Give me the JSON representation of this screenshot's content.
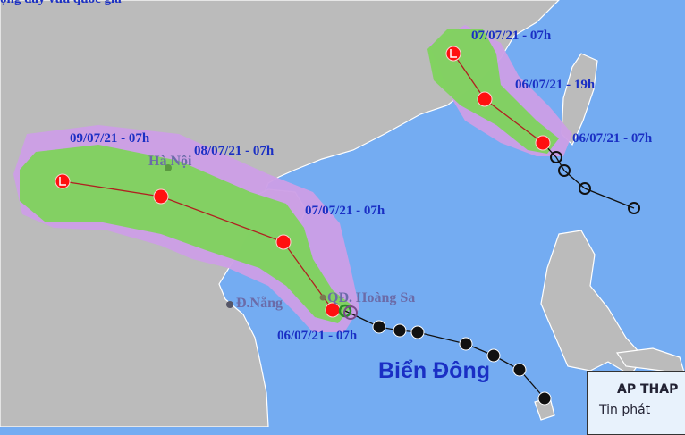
{
  "header": {
    "partial_text": "ộng đây vừa quốc gia"
  },
  "colors": {
    "sea": "#74acf2",
    "land": "#bbbbbb",
    "cone_green": "#7ed35c",
    "cone_purple": "#cc9ee6",
    "forecast_point": "#ff1010",
    "past_point": "#000000"
  },
  "storm_main": {
    "labels": [
      "09/07/21 - 07h",
      "08/07/21 - 07h",
      "07/07/21 - 07h",
      "06/07/21 - 07h"
    ]
  },
  "storm_north": {
    "labels": [
      "07/07/21 - 07h",
      "06/07/21 - 19h",
      "06/07/21 - 07h"
    ]
  },
  "places": {
    "hanoi": "Hà Nội",
    "danang": "Đ.Nẵng",
    "hoangsa": "QĐ. Hoàng Sa"
  },
  "sea_name": "Biển Đông",
  "info_box": {
    "title": "AP THAP",
    "subtitle": "Tin phát"
  },
  "icons": {
    "forecast": "low-pressure-L-icon",
    "storm": "typhoon-icon",
    "past": "past-position-icon"
  }
}
